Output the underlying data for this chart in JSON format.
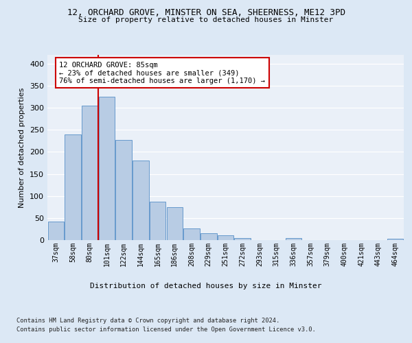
{
  "title1": "12, ORCHARD GROVE, MINSTER ON SEA, SHEERNESS, ME12 3PD",
  "title2": "Size of property relative to detached houses in Minster",
  "xlabel": "Distribution of detached houses by size in Minster",
  "ylabel": "Number of detached properties",
  "categories": [
    "37sqm",
    "58sqm",
    "80sqm",
    "101sqm",
    "122sqm",
    "144sqm",
    "165sqm",
    "186sqm",
    "208sqm",
    "229sqm",
    "251sqm",
    "272sqm",
    "293sqm",
    "315sqm",
    "336sqm",
    "357sqm",
    "379sqm",
    "400sqm",
    "421sqm",
    "443sqm",
    "464sqm"
  ],
  "values": [
    42,
    240,
    305,
    325,
    227,
    180,
    87,
    75,
    26,
    15,
    11,
    5,
    0,
    0,
    4,
    0,
    0,
    0,
    0,
    0,
    3
  ],
  "bar_color": "#b8cce4",
  "bar_edge_color": "#6699cc",
  "vline_x_index": 2,
  "vline_color": "#cc0000",
  "annotation_text": "12 ORCHARD GROVE: 85sqm\n← 23% of detached houses are smaller (349)\n76% of semi-detached houses are larger (1,170) →",
  "annotation_box_color": "#ffffff",
  "annotation_box_edge": "#cc0000",
  "ylim": [
    0,
    420
  ],
  "yticks": [
    0,
    50,
    100,
    150,
    200,
    250,
    300,
    350,
    400
  ],
  "footer1": "Contains HM Land Registry data © Crown copyright and database right 2024.",
  "footer2": "Contains public sector information licensed under the Open Government Licence v3.0.",
  "background_color": "#dce8f5",
  "plot_bg_color": "#eaf0f8"
}
